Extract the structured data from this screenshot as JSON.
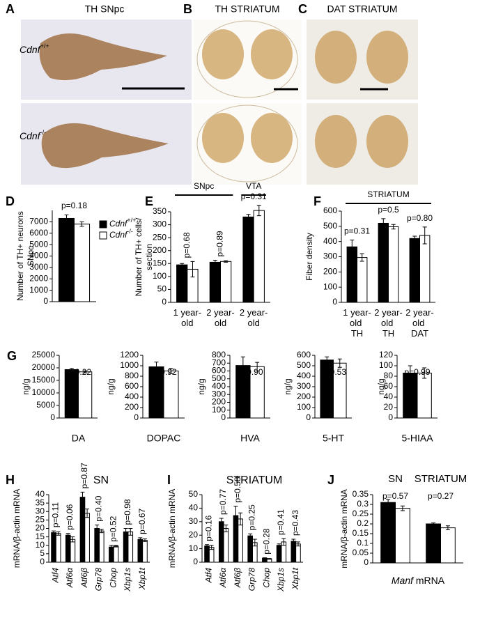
{
  "images": {
    "panels": [
      {
        "letter": "A",
        "title": "TH SNpc"
      },
      {
        "letter": "B",
        "title": "TH STRIATUM"
      },
      {
        "letter": "C",
        "title": "DAT STRIATUM"
      }
    ],
    "row_labels": [
      "Cdnf+/+",
      "Cdnf-/-"
    ]
  },
  "chart_data": [
    {
      "type": "bar",
      "panel": "D",
      "ylabel": [
        "Number of TH+ neurons",
        "SNpc"
      ],
      "categories": [
        null
      ],
      "series": [
        {
          "name": "Cdnf+/+",
          "color": "#000000",
          "values": [
            7300
          ],
          "errors": [
            300
          ]
        },
        {
          "name": "Cdnf-/-",
          "color": "#ffffff",
          "values": [
            6800
          ],
          "errors": [
            200
          ]
        }
      ],
      "annotations": [
        "p=0.18"
      ],
      "ylim": [
        0,
        8000
      ],
      "yticks": [
        0,
        1000,
        2000,
        3000,
        4000,
        5000,
        6000,
        7000
      ]
    },
    {
      "type": "bar",
      "panel": "E",
      "ylabel": [
        "Number of TH+ cells/",
        "section"
      ],
      "categories": [
        "1 year-old",
        "2 year-old",
        "2 year-old"
      ],
      "groups": [
        "SNpc",
        "VTA"
      ],
      "series": [
        {
          "color": "#000000",
          "values": [
            145,
            155,
            330
          ],
          "errors": [
            5,
            8,
            10
          ]
        },
        {
          "color": "#ffffff",
          "values": [
            128,
            158,
            355
          ],
          "errors": [
            30,
            3,
            20
          ]
        }
      ],
      "annotations": [
        "p=0.68",
        "p=0.89",
        "p=0.31"
      ],
      "ylim": [
        0,
        350
      ],
      "yticks": [
        0,
        50,
        100,
        150,
        200,
        250,
        300,
        350
      ]
    },
    {
      "type": "bar",
      "panel": "F",
      "ylabel": "Fiber density",
      "categories": [
        "1 year-old TH",
        "2 year-old TH",
        "2 year-old DAT"
      ],
      "groups": [
        "STRIATUM"
      ],
      "series": [
        {
          "color": "#000000",
          "values": [
            365,
            520,
            420
          ],
          "errors": [
            45,
            30,
            15
          ]
        },
        {
          "color": "#ffffff",
          "values": [
            295,
            497,
            440
          ],
          "errors": [
            25,
            15,
            55
          ]
        }
      ],
      "annotations": [
        "p=0.31",
        "p=0.5",
        "p=0.80"
      ],
      "ylim": [
        0,
        600
      ],
      "yticks": [
        0,
        100,
        200,
        300,
        400,
        500,
        600
      ]
    },
    {
      "type": "bar",
      "panel": "G",
      "ylabel": "ng/g",
      "categories": [
        "DA"
      ],
      "series": [
        {
          "color": "#000000",
          "values": [
            19300
          ],
          "errors": [
            500
          ]
        },
        {
          "color": "#ffffff",
          "values": [
            18400
          ],
          "errors": [
            400
          ]
        }
      ],
      "annotations": [
        "p=0.22"
      ],
      "ylim": [
        0,
        25000
      ],
      "yticks": [
        0,
        5000,
        10000,
        15000,
        20000,
        25000
      ]
    },
    {
      "type": "bar",
      "ylabel": "ng/g",
      "categories": [
        "DOPAC"
      ],
      "series": [
        {
          "color": "#000000",
          "values": [
            980
          ],
          "errors": [
            90
          ]
        },
        {
          "color": "#ffffff",
          "values": [
            900
          ],
          "errors": [
            50
          ]
        }
      ],
      "annotations": [
        "p=0.92"
      ],
      "ylim": [
        0,
        1200
      ],
      "yticks": [
        0,
        200,
        400,
        600,
        800,
        1000,
        1200
      ]
    },
    {
      "type": "bar",
      "ylabel": "ng/g",
      "categories": [
        "HVA"
      ],
      "series": [
        {
          "color": "#000000",
          "values": [
            670
          ],
          "errors": [
            110
          ]
        },
        {
          "color": "#ffffff",
          "values": [
            655
          ],
          "errors": [
            55
          ]
        }
      ],
      "annotations": [
        "p=0.90"
      ],
      "ylim": [
        0,
        800
      ],
      "yticks": [
        0,
        100,
        200,
        300,
        400,
        500,
        600,
        700,
        800
      ]
    },
    {
      "type": "bar",
      "ylabel": "ng/g",
      "categories": [
        "5-HT"
      ],
      "series": [
        {
          "color": "#000000",
          "values": [
            555
          ],
          "errors": [
            30
          ]
        },
        {
          "color": "#ffffff",
          "values": [
            525
          ],
          "errors": [
            40
          ]
        }
      ],
      "annotations": [
        "p=0.53"
      ],
      "ylim": [
        0,
        600
      ],
      "yticks": [
        0,
        100,
        200,
        300,
        400,
        500,
        600
      ]
    },
    {
      "type": "bar",
      "ylabel": "ng/g",
      "categories": [
        "5-HIAA"
      ],
      "series": [
        {
          "color": "#000000",
          "values": [
            86
          ],
          "errors": [
            14
          ]
        },
        {
          "color": "#ffffff",
          "values": [
            86
          ],
          "errors": [
            10
          ]
        }
      ],
      "annotations": [
        "p=0.99"
      ],
      "ylim": [
        0,
        120
      ],
      "yticks": [
        0,
        20,
        40,
        60,
        80,
        100,
        120
      ]
    },
    {
      "type": "bar",
      "panel": "H",
      "title": "SN",
      "ylabel": "mRNA/β-actin mRNA",
      "categories": [
        "Atf4",
        "Atf6α",
        "Atf6β",
        "Grp78",
        "Chop",
        "Xbp1s",
        "Xbp1t"
      ],
      "series": [
        {
          "color": "#000000",
          "values": [
            17.5,
            16,
            38.5,
            20,
            9,
            18,
            13.5
          ],
          "errors": [
            1,
            1,
            3,
            2,
            1,
            2,
            1
          ]
        },
        {
          "color": "#ffffff",
          "values": [
            17,
            13.5,
            29,
            18.5,
            9.5,
            18,
            13
          ],
          "errors": [
            1,
            1.5,
            2.5,
            1,
            0.5,
            2,
            0.8
          ]
        }
      ],
      "annotations": [
        "p=0.11",
        "p=0.06",
        "p=0.87",
        "p=0.40",
        "p=0.52",
        "p=0.98",
        "p=0.67"
      ],
      "ylim": [
        0,
        40
      ],
      "yticks": [
        0,
        5,
        10,
        15,
        20,
        25,
        30,
        35,
        40
      ]
    },
    {
      "type": "bar",
      "panel": "I",
      "title": "STRIATUM",
      "ylabel": "mRNA/β-actin mRNA",
      "categories": [
        "Atf4",
        "Atf6α",
        "Atf6β",
        "Grp78",
        "Chop",
        "Xbp1s",
        "Xbp1t"
      ],
      "series": [
        {
          "color": "#000000",
          "values": [
            12,
            30,
            34.5,
            19.5,
            3,
            12.5,
            15.5
          ],
          "errors": [
            1,
            2.5,
            7,
            1.5,
            0.3,
            1,
            1.5
          ]
        },
        {
          "color": "#ffffff",
          "values": [
            11,
            25,
            32,
            14.5,
            2.5,
            15,
            13.5
          ],
          "errors": [
            1.5,
            2.5,
            4.5,
            2.5,
            0.3,
            2.5,
            1.5
          ]
        }
      ],
      "annotations": [
        "p=0.16",
        "p=0.77",
        "p=0.58",
        "p=0.25",
        "p=0.28",
        "p=0.41",
        "p=0.43"
      ],
      "ylim": [
        0,
        50
      ],
      "yticks": [
        0,
        10,
        20,
        30,
        40,
        50
      ]
    },
    {
      "type": "bar",
      "panel": "J",
      "ylabel": "mRNA/β-actin mRNA",
      "xlabel": "Manf mRNA",
      "categories": [
        "SN",
        "STRIATUM"
      ],
      "series": [
        {
          "color": "#000000",
          "values": [
            0.31,
            0.2
          ],
          "errors": [
            0.015,
            0.005
          ]
        },
        {
          "color": "#ffffff",
          "values": [
            0.28,
            0.18
          ],
          "errors": [
            0.012,
            0.01
          ]
        }
      ],
      "annotations": [
        "p=0.57",
        "p=0.27"
      ],
      "ylim": [
        0,
        0.35
      ],
      "yticks": [
        0,
        0.05,
        0.1,
        0.15,
        0.2,
        0.25,
        0.3,
        0.35
      ]
    }
  ]
}
